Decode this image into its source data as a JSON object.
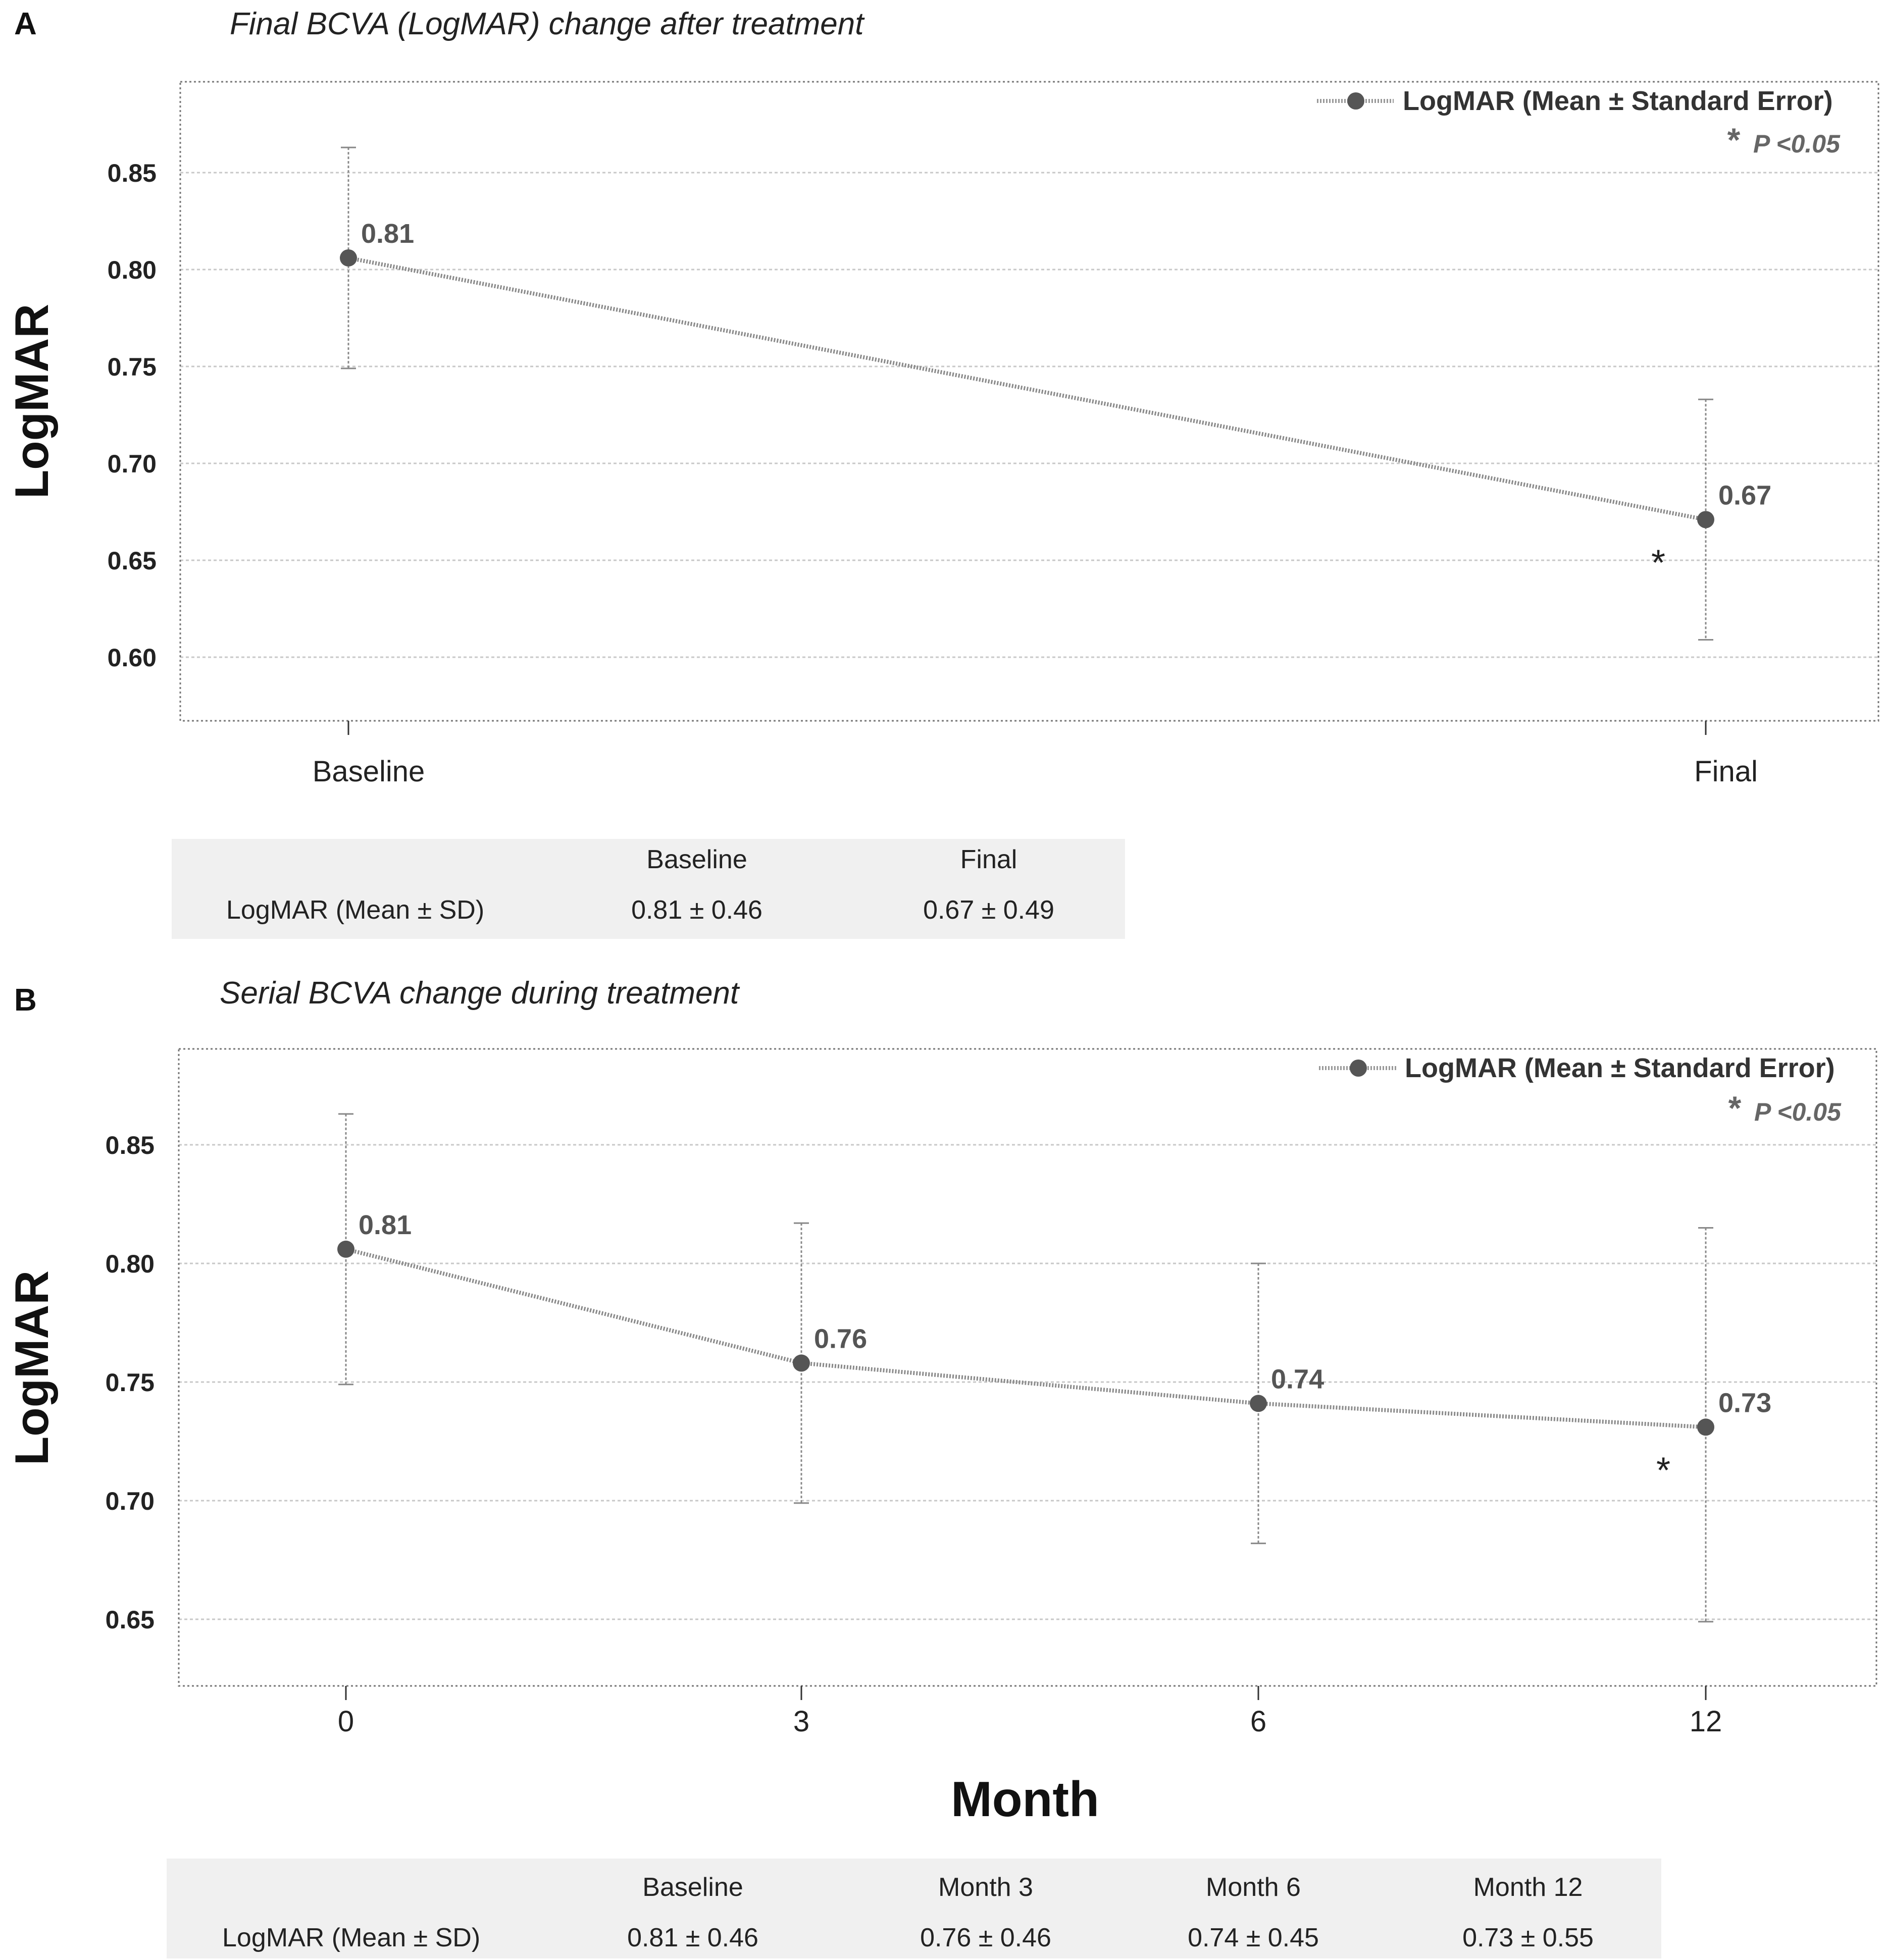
{
  "colors": {
    "series": "#555555",
    "grid": "#c8c8c8",
    "frame": "#777777",
    "table_bg": "#f0f0f0"
  },
  "legend_label": "LogMAR (Mean ± Standard Error)",
  "significance_note": "P <0.05",
  "significance_star": "*",
  "pm": "±",
  "chart_data": [
    {
      "panel": "A",
      "type": "line",
      "title": "Final BCVA (LogMAR) change after treatment",
      "ylabel": "LogMAR",
      "xlabel": "",
      "ylim": [
        0.568,
        0.898
      ],
      "yticks": [
        0.6,
        0.65,
        0.7,
        0.75,
        0.8,
        0.85
      ],
      "ytick_labels": [
        "0.60",
        "0.65",
        "0.70",
        "0.75",
        "0.80",
        "0.85"
      ],
      "grid": true,
      "legend_position": "top-right",
      "categories": [
        "Baseline",
        "Final"
      ],
      "series": [
        {
          "name": "LogMAR (Mean ± Standard Error)",
          "values": [
            0.806,
            0.671
          ],
          "error_low": [
            0.749,
            0.609
          ],
          "error_high": [
            0.863,
            0.733
          ],
          "labels": [
            "0.81",
            "0.67"
          ],
          "significant": [
            false,
            true
          ]
        }
      ]
    },
    {
      "panel": "B",
      "type": "line",
      "title": "Serial BCVA change during treatment",
      "ylabel": "LogMAR",
      "xlabel": "Month",
      "ylim": [
        0.622,
        0.89
      ],
      "yticks": [
        0.65,
        0.7,
        0.75,
        0.8,
        0.85
      ],
      "ytick_labels": [
        "0.65",
        "0.70",
        "0.75",
        "0.80",
        "0.85"
      ],
      "grid": true,
      "legend_position": "top-right",
      "categories": [
        "0",
        "3",
        "6",
        "12"
      ],
      "series": [
        {
          "name": "LogMAR (Mean ± Standard Error)",
          "values": [
            0.806,
            0.758,
            0.741,
            0.731
          ],
          "error_low": [
            0.749,
            0.699,
            0.682,
            0.649
          ],
          "error_high": [
            0.863,
            0.817,
            0.8,
            0.815
          ],
          "labels": [
            "0.81",
            "0.76",
            "0.74",
            "0.73"
          ],
          "significant": [
            false,
            false,
            false,
            true
          ]
        }
      ]
    }
  ],
  "tables": [
    {
      "headers": [
        "",
        "Baseline",
        "Final"
      ],
      "rows": [
        {
          "label": "LogMAR (Mean ± SD)",
          "means": [
            "0.81",
            "0.67"
          ],
          "sds": [
            "0.46",
            "0.49"
          ]
        }
      ]
    },
    {
      "headers": [
        "",
        "Baseline",
        "Month 3",
        "Month 6",
        "Month 12"
      ],
      "rows": [
        {
          "label": "LogMAR (Mean ± SD)",
          "means": [
            "0.81",
            "0.76",
            "0.74",
            "0.73"
          ],
          "sds": [
            "0.46",
            "0.46",
            "0.45",
            "0.55"
          ]
        }
      ]
    }
  ]
}
